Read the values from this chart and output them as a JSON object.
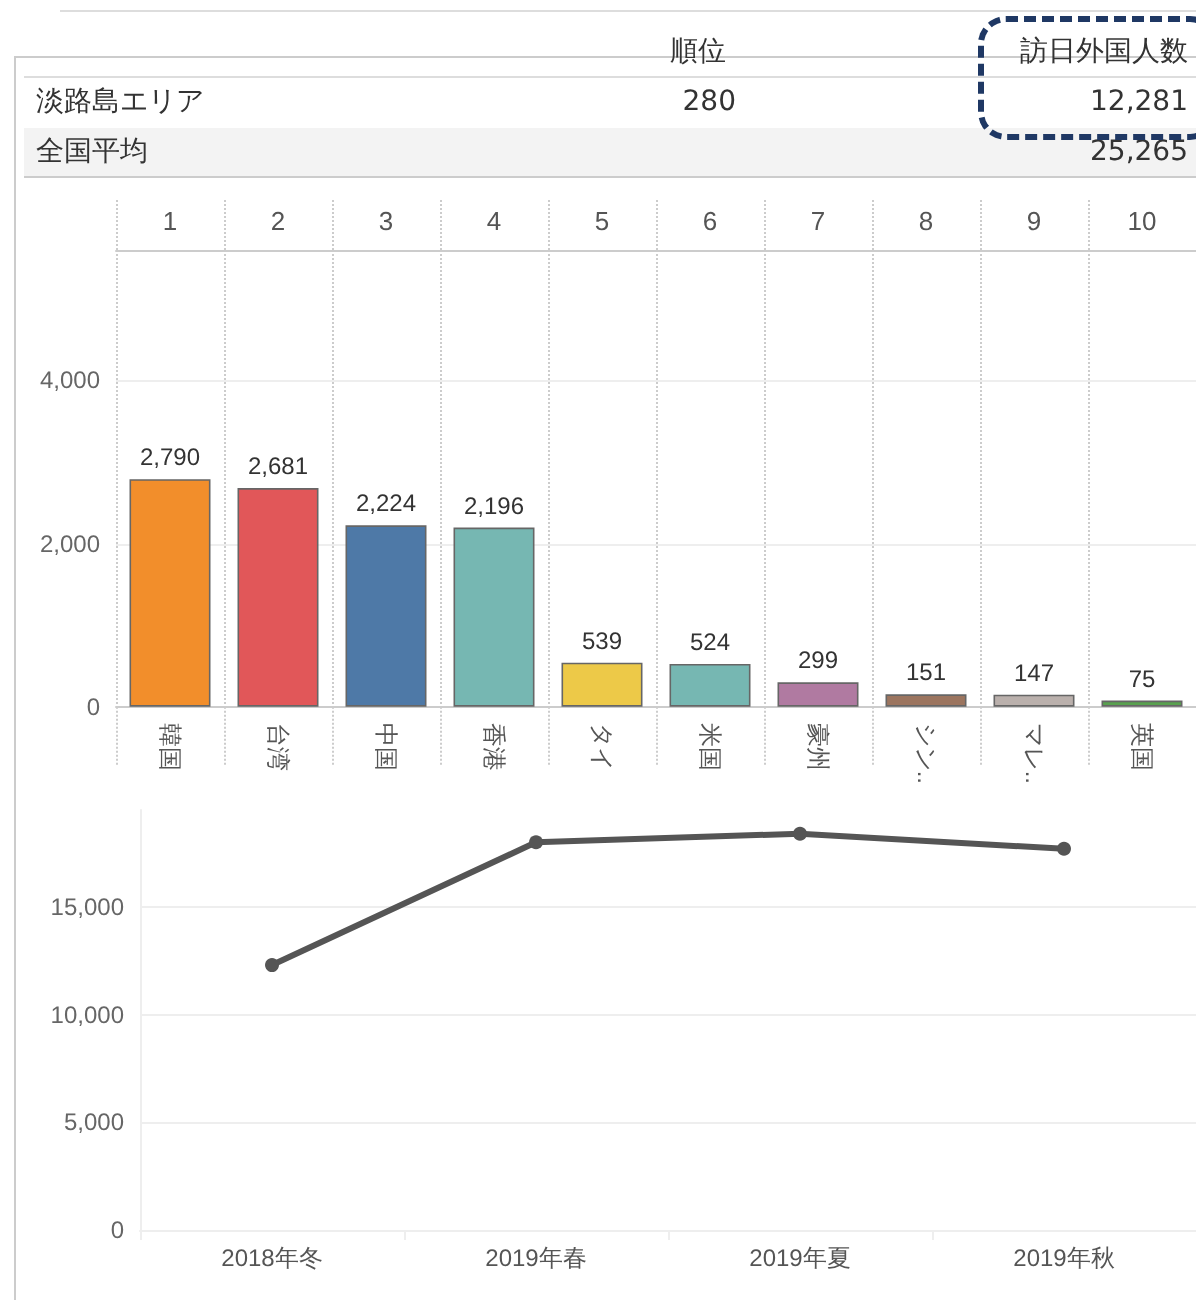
{
  "chart_data": [
    {
      "type": "other",
      "annotations": [
        "順位",
        "訪日外国人数",
        "淡路島エリア",
        "280",
        "12,281",
        "全国平均",
        "25,265"
      ]
    },
    {
      "type": "bar",
      "categories": [
        "韓国",
        "台湾",
        "中国",
        "香港",
        "タイ",
        "米国",
        "豪州",
        "シン..",
        "マレ..",
        "英国"
      ],
      "values": [
        2790,
        2681,
        2224,
        2196,
        539,
        524,
        299,
        151,
        147,
        75
      ],
      "colors": [
        "#f28e2b",
        "#e15759",
        "#4e79a7",
        "#76b7b2",
        "#edc948",
        "#76b7b2",
        "#b07aa1",
        "#9c755f",
        "#bab0ac",
        "#59a14f"
      ],
      "annotations": [
        "1",
        "2",
        "3",
        "4",
        "5",
        "6",
        "7",
        "8",
        "9",
        "10"
      ],
      "value_labels": [
        "2,790",
        "2,681",
        "2,224",
        "2,196",
        "539",
        "524",
        "299",
        "151",
        "147",
        "75"
      ],
      "ylim": [
        0,
        5600
      ],
      "yticks": [
        0,
        {
          "value": 2000,
          "label": "2,000"
        },
        {
          "value": 4000,
          "label": "4,000"
        }
      ],
      "grid": true
    },
    {
      "type": "line",
      "categories": [
        "2018年冬",
        "2019年春",
        "2019年夏",
        "2019年秋"
      ],
      "values": [
        12300,
        18000,
        18400,
        17700
      ],
      "color": "#555555",
      "ylim": [
        0,
        19500
      ],
      "yticks": [
        0,
        {
          "value": 5000,
          "label": "5,000"
        },
        {
          "value": 10000,
          "label": "10,000"
        },
        {
          "value": 15000,
          "label": "15,000"
        }
      ],
      "grid": "y",
      "marker": "circle"
    }
  ]
}
